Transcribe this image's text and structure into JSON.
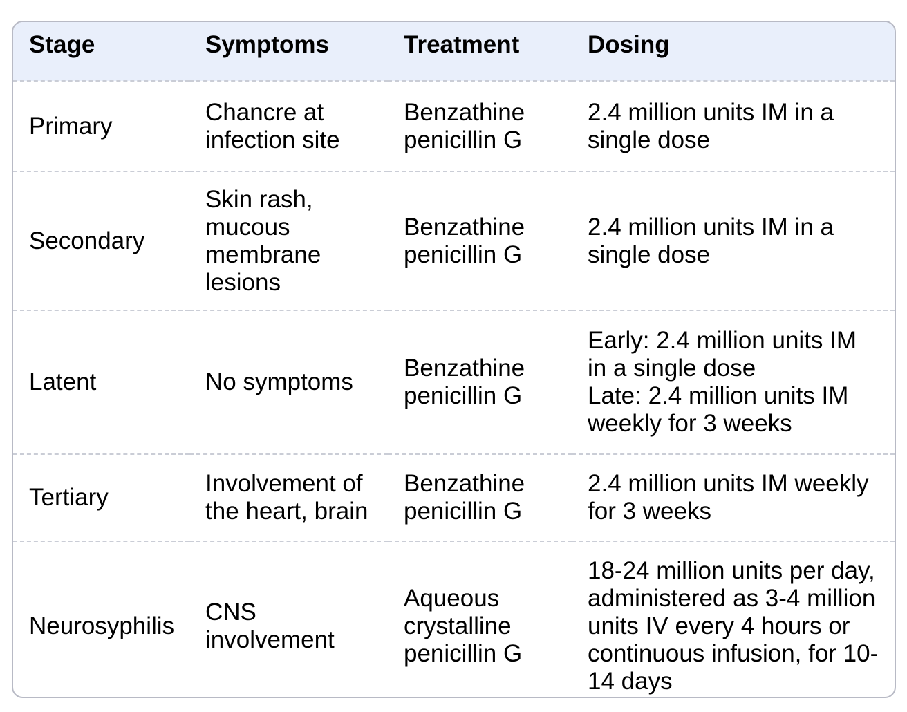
{
  "table": {
    "columns": [
      "Stage",
      "Symptoms",
      "Treatment",
      "Dosing"
    ],
    "rows": [
      {
        "stage": "Primary",
        "symptoms": "Chancre at infection site",
        "treatment": "Benzathine penicillin G",
        "dosing": "2.4 million units IM in a single dose"
      },
      {
        "stage": "Secondary",
        "symptoms": "Skin rash, mucous membrane lesions",
        "treatment": "Benzathine penicillin G",
        "dosing": "2.4 million units IM in a single dose"
      },
      {
        "stage": "Latent",
        "symptoms": "No symptoms",
        "treatment": "Benzathine penicillin G",
        "dosing": "Early: 2.4 million units IM in a single dose\nLate: 2.4 million units IM weekly for 3 weeks"
      },
      {
        "stage": "Tertiary",
        "symptoms": "Involvement of the heart, brain",
        "treatment": "Benzathine penicillin G",
        "dosing": "2.4 million units IM weekly for 3 weeks"
      },
      {
        "stage": "Neurosyphilis",
        "symptoms": "CNS involvement",
        "treatment": "Aqueous crystalline penicillin G",
        "dosing": "18-24 million units per day, administered as 3-4 million units IV every 4 hours or continuous infusion, for 10-14 days"
      }
    ]
  },
  "colors": {
    "header_bg": "#E9EFFB",
    "border": "#B8BAC5",
    "row_divider": "#CACDD6",
    "text": "#000000",
    "background": "#FFFFFF"
  }
}
